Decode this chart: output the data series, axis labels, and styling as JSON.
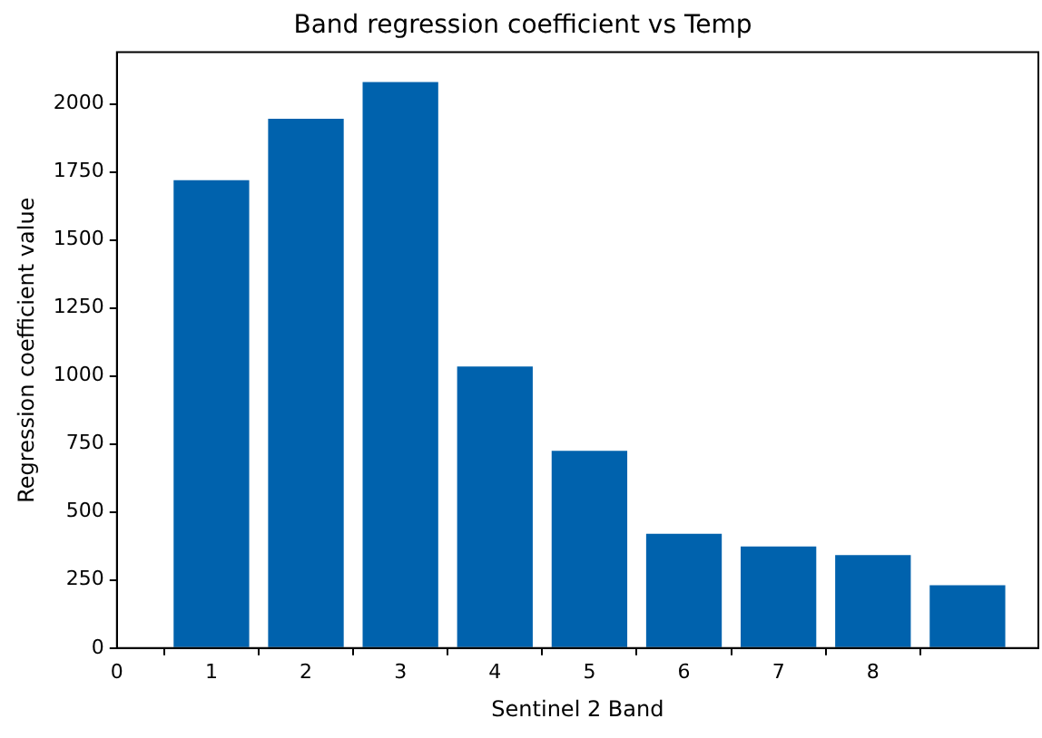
{
  "chart_data": {
    "type": "bar",
    "title": "Band regression coefficient vs Temp",
    "xlabel": "Sentinel 2 Band",
    "ylabel": "Regression coefficient value",
    "x": [
      1,
      2,
      3,
      4,
      5,
      6,
      7,
      8,
      9
    ],
    "values": [
      1720,
      1945,
      2080,
      1035,
      725,
      420,
      373,
      342,
      231
    ],
    "color": "#0062ad",
    "xlim": [
      0,
      9.75
    ],
    "xticks": [
      0,
      1,
      2,
      3,
      4,
      5,
      6,
      7,
      8
    ],
    "ylim": [
      0,
      2190
    ],
    "yticks": [
      0,
      250,
      500,
      750,
      1000,
      1250,
      1500,
      1750,
      2000
    ],
    "grid": false,
    "legend": false
  }
}
